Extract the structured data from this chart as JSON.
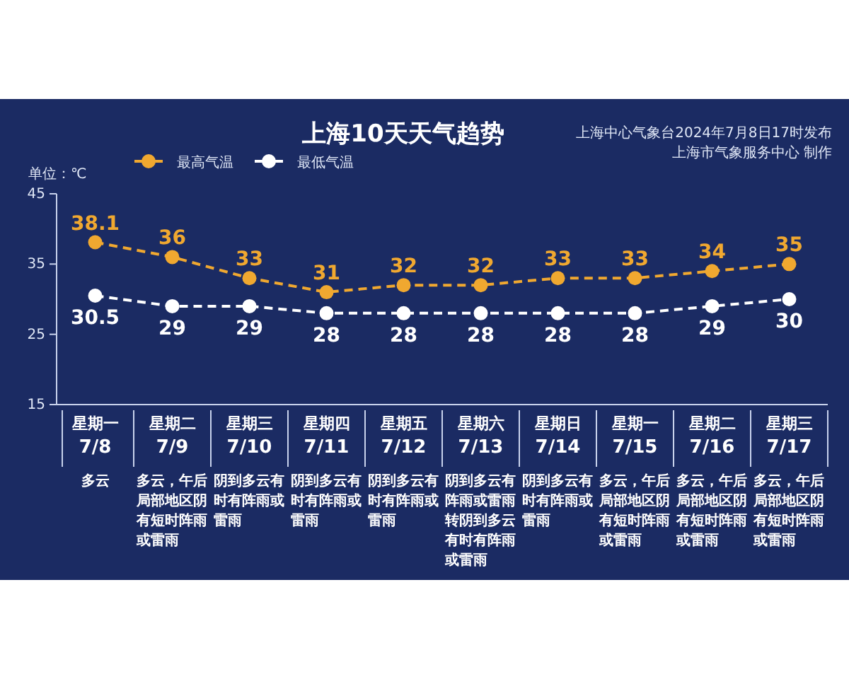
{
  "chart_data": {
    "type": "line",
    "title": "上海10天天气趋势",
    "ylabel": "单位：℃",
    "categories": [
      "星期一\n7/8",
      "星期二\n7/9",
      "星期三\n7/10",
      "星期四\n7/11",
      "星期五\n7/12",
      "星期六\n7/13",
      "星期日\n7/14",
      "星期一\n7/15",
      "星期二\n7/16",
      "星期三\n7/17"
    ],
    "series": [
      {
        "name": "最高气温",
        "color": "#f0a830",
        "values": [
          38.1,
          36,
          33,
          31,
          32,
          32,
          33,
          33,
          34,
          35
        ]
      },
      {
        "name": "最低气温",
        "color": "#ffffff",
        "values": [
          30.5,
          29,
          29,
          28,
          28,
          28,
          28,
          28,
          29,
          30
        ]
      }
    ],
    "ylim": [
      15,
      45
    ],
    "yticks": [
      15,
      25,
      35,
      45
    ],
    "grid": false,
    "legend": "top left",
    "marker": "circle",
    "line_style": "dashed",
    "data_labels": true,
    "annotations": [
      "上海中心气象台2024年7月8日17时发布",
      "上海市气象服务中心 制作",
      "多云",
      "多云，午后局部地区阴有短时阵雨或雷雨",
      "阴到多云有时有阵雨或雷雨",
      "阴到多云有时有阵雨或雷雨",
      "阴到多云有时有阵雨或雷雨",
      "阴到多云有阵雨或雷雨转阴到多云有时有阵雨或雷雨",
      "阴到多云有时有阵雨或雷雨",
      "多云，午后局部地区阴有短时阵雨或雷雨",
      "多云，午后局部地区阴有短时阵雨或雷雨",
      "多云，午后局部地区阴有短时阵雨或雷雨"
    ]
  }
}
